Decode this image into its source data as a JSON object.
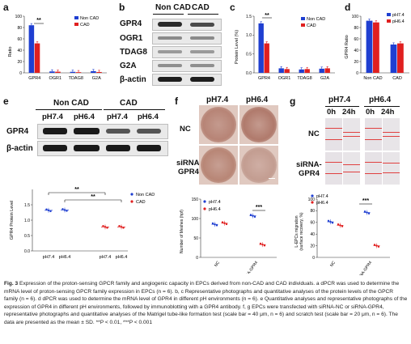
{
  "panels": {
    "a": {
      "label": "a",
      "ylabel": "Ratio",
      "legend": [
        "Non CAD",
        "CAD"
      ],
      "sig": "**",
      "y_ticks": [
        "0",
        "20",
        "40",
        "60",
        "80",
        "100"
      ],
      "chart_data": {
        "type": "bar",
        "categories": [
          "GPR4",
          "OGR1",
          "TDAG8",
          "G2A"
        ],
        "series": [
          {
            "name": "Non CAD",
            "values": [
              84,
              2.5,
              1.8,
              3
            ]
          },
          {
            "name": "CAD",
            "values": [
              52,
              2,
              1.2,
              1.5
            ]
          }
        ],
        "ylim": [
          0,
          100
        ],
        "ylabel": "Ratio"
      }
    },
    "b": {
      "label": "b",
      "groups": [
        "Non CAD",
        "CAD"
      ],
      "rows": [
        "GPR4",
        "OGR1",
        "TDAG8",
        "G2A",
        "β-actin"
      ]
    },
    "c": {
      "label": "c",
      "ylabel": "Protein Level (%)",
      "legend": [
        "Non CAD",
        "CAD"
      ],
      "sig": "**",
      "y_ticks": [
        "0.0",
        "0.5",
        "1.0",
        "1.5"
      ],
      "chart_data": {
        "type": "bar",
        "categories": [
          "GPR4",
          "OGR1",
          "TDAG8",
          "G2A"
        ],
        "series": [
          {
            "name": "Non CAD",
            "values": [
              1.31,
              0.12,
              0.09,
              0.11
            ]
          },
          {
            "name": "CAD",
            "values": [
              0.78,
              0.1,
              0.1,
              0.12
            ]
          }
        ],
        "ylim": [
          0,
          1.5
        ],
        "ylabel": "Protein Level (%)"
      }
    },
    "d": {
      "label": "d",
      "ylabel": "GPR4 Ratio",
      "legend": [
        "pH7.4",
        "pH6.4"
      ],
      "y_ticks": [
        "0",
        "20",
        "40",
        "60",
        "80",
        "100"
      ],
      "chart_data": {
        "type": "bar",
        "categories": [
          "Non CAD",
          "CAD"
        ],
        "series": [
          {
            "name": "pH7.4",
            "values": [
              92,
              50
            ]
          },
          {
            "name": "pH6.4",
            "values": [
              89,
              52
            ]
          }
        ],
        "ylim": [
          0,
          100
        ],
        "ylabel": "GPR4 Ratio"
      }
    },
    "e": {
      "label": "e",
      "groups": [
        "Non CAD",
        "CAD"
      ],
      "ph": [
        "pH7.4",
        "pH6.4",
        "pH7.4",
        "pH6.4"
      ],
      "rows": [
        "GPR4",
        "β-actin"
      ],
      "ylabel": "GPR4 Protein Level",
      "legend": [
        "Non CAD",
        "CAD"
      ],
      "sig1": "**",
      "sig2": "**",
      "y_ticks": [
        "0.0",
        "0.5",
        "1.0",
        "1.5"
      ],
      "chart_data": {
        "type": "scatter",
        "categories": [
          "pH7.4",
          "pH6.4",
          "pH7.4",
          "pH6.4"
        ],
        "series": [
          {
            "name": "Non CAD",
            "values": [
              1.32,
              1.33,
              null,
              null
            ]
          },
          {
            "name": "CAD",
            "values": [
              null,
              null,
              0.78,
              0.78
            ]
          }
        ],
        "ylim": [
          0,
          2.0
        ],
        "ylabel": "GPR4 Protein Level"
      }
    },
    "f": {
      "label": "f",
      "cols": [
        "pH7.4",
        "pH6.4"
      ],
      "rows": [
        "NC",
        "siRNA-\nGPR4"
      ],
      "rowA": "NC",
      "rowB1": "siRNA-",
      "rowB2": "GPR4",
      "ylabel": "Number of Meshes (hpf)",
      "legend": [
        "pH7.4",
        "pH6.4"
      ],
      "sig": "***",
      "y_ticks": [
        "0",
        "50",
        "100",
        "150"
      ],
      "chart_data": {
        "type": "scatter",
        "categories": [
          "NC",
          "siRNA-GPR4"
        ],
        "series": [
          {
            "name": "pH7.4",
            "values": [
              85,
              107
            ]
          },
          {
            "name": "pH6.4",
            "values": [
              88,
              33
            ]
          }
        ],
        "ylim": [
          0,
          150
        ],
        "ylabel": "Number of Meshes (hpf)"
      }
    },
    "g": {
      "label": "g",
      "cols": [
        "pH7.4",
        "pH6.4"
      ],
      "times": [
        "0h",
        "24h",
        "0h",
        "24h"
      ],
      "rowA": "NC",
      "rowB1": "siRNA-",
      "rowB2": "GPR4",
      "ylabel": "L-EPCs migration (surface recovery, %)",
      "ylabel1": "L-EPCs migration",
      "ylabel2": "(surface recovery, %)",
      "legend": [
        "pH7.4",
        "pH6.4"
      ],
      "sig": "***",
      "y_ticks": [
        "0",
        "20",
        "40",
        "60",
        "80",
        "100"
      ],
      "chart_data": {
        "type": "scatter",
        "categories": [
          "NC",
          "siRNA-GPR4"
        ],
        "series": [
          {
            "name": "pH7.4",
            "values": [
              61,
              77
            ]
          },
          {
            "name": "pH6.4",
            "values": [
              55,
              20
            ]
          }
        ],
        "ylim": [
          0,
          100
        ],
        "ylabel": "L-EPCs migration (surface recovery, %)"
      }
    }
  },
  "caption": {
    "fig": "Fig. 3",
    "text": " Expression of the proton-sensing GPCR family and angiogenic capacity in EPCs derived from non-CAD and CAD individuals. a dPCR was used to determine the mRNA level of proton-sensing GPCR family expression in EPCs (n = 6). b, c Representative photographs and quantitative analyses of the protein levels of the GPCR family (n = 6). d dPCR was used to determine the mRNA level of GPR4 in different pH environments (n = 6). e Quantitative analyses and representative photographs of the expression of GPR4 in different pH environments, followed by immunoblotting with a GPR4 antibody. f, g EPCs were transfected with siRNA-NC or siRNA-GPR4, representative photographs and quantitative analyses of the Matrigel tube-like formation test (scale bar = 40 μm, n = 6) and scratch test (scale bar = 20 μm, n = 6). The data are presented as the mean ± SD. **P < 0.01, ***P < 0.001"
  },
  "colors": {
    "nonCAD": "#1f3fd1",
    "CAD": "#e02020",
    "ph74": "#1f3fd1",
    "ph64": "#e02020"
  }
}
